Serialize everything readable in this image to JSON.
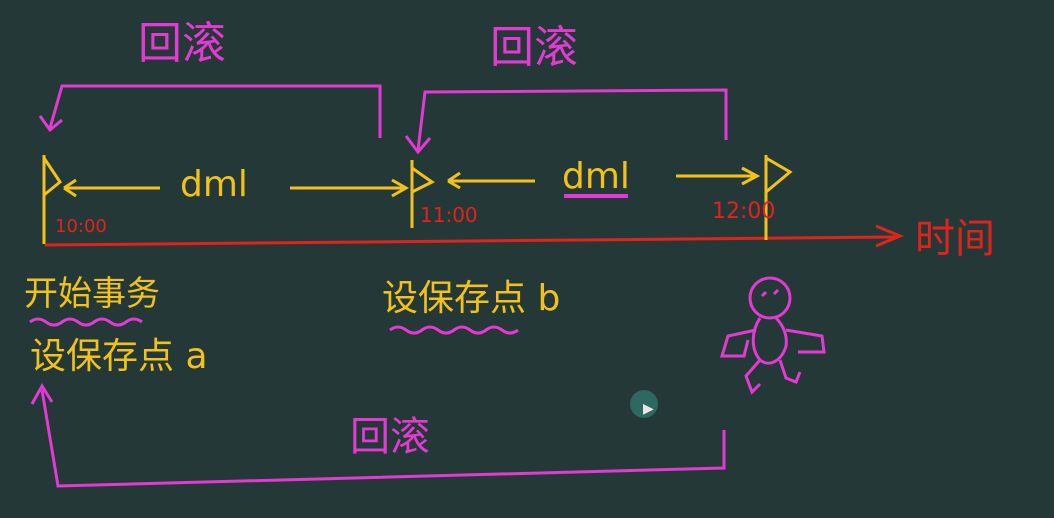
{
  "colors": {
    "background": "#253838",
    "yellow": "#f2c21a",
    "magenta": "#e23ad3",
    "red": "#e0231b"
  },
  "labels": {
    "rollback_top_left": "回滚",
    "rollback_top_right": "回滚",
    "rollback_bottom": "回滚",
    "dml_left": "dml",
    "dml_right": "dml",
    "time_1000": "10:00",
    "time_1100": "11:00",
    "time_1200": "12:00",
    "time_axis": "时间",
    "start_transaction": "开始事务",
    "savepoint_a": "设保存点 a",
    "savepoint_b": "设保存点 b"
  },
  "icons": [
    "stick-figure-icon",
    "flag-icon",
    "mouse-cursor-icon"
  ]
}
